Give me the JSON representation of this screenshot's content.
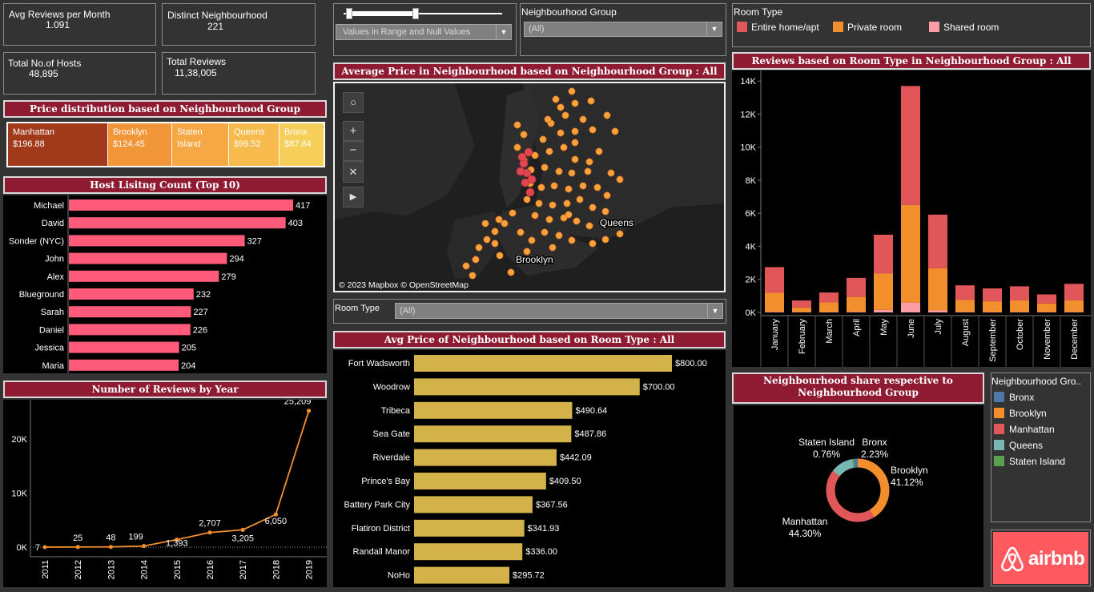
{
  "kpis": {
    "avg_reviews": {
      "label": "Avg Reviews per Month",
      "value": "1.091"
    },
    "distinct_neigh": {
      "label": "Distinct Neighbourhood",
      "value": "221"
    },
    "total_hosts": {
      "label": "Total No.of Hosts",
      "value": "48,895"
    },
    "total_reviews": {
      "label": "Total Reviews",
      "value": "11,38,005"
    }
  },
  "filters": {
    "range_filter": {
      "selected": "Values in Range and Null Values",
      "slider_low": 0.03,
      "slider_high": 0.45
    },
    "neighbourhood_group": {
      "label": "Neighbourhood Group",
      "selected": "(All)"
    },
    "room_type": {
      "label": "Room Type",
      "selected": "(All)"
    }
  },
  "room_type_legend": {
    "title": "Room Type",
    "items": [
      {
        "label": "Entire home/apt",
        "color": "#e15759"
      },
      {
        "label": "Private room",
        "color": "#f28e2b"
      },
      {
        "label": "Shared room",
        "color": "#ff9da7"
      }
    ]
  },
  "price_distribution": {
    "title": "Price distribution based on Neighbourhood Group",
    "cells": [
      {
        "name": "Manhattan",
        "price": "$196.88",
        "color": "#a03a1b"
      },
      {
        "name": "Brooklyn",
        "price": "$124.45",
        "color": "#f2963a"
      },
      {
        "name": "Staten Island",
        "price": "",
        "color": "#f5a843"
      },
      {
        "name": "Queens",
        "price": "$99.52",
        "color": "#f7bb4d"
      },
      {
        "name": "Bronx",
        "price": "$87.64",
        "color": "#f6cf5a"
      }
    ]
  },
  "host_listing": {
    "title": "Host Lisitng Count (Top 10)",
    "chart_data": {
      "type": "bar",
      "categories": [
        "Michael",
        "David",
        "Sonder (NYC)",
        "John",
        "Alex",
        "Blueground",
        "Sarah",
        "Daniel",
        "Jessica",
        "Maria"
      ],
      "values": [
        417,
        403,
        327,
        294,
        279,
        232,
        227,
        226,
        205,
        204
      ],
      "color": "#ff5a7a"
    }
  },
  "reviews_by_year": {
    "title": "Number of Reviews by Year",
    "chart_data": {
      "type": "line",
      "x": [
        "2011",
        "2012",
        "2013",
        "2014",
        "2015",
        "2016",
        "2017",
        "2018",
        "2019"
      ],
      "values": [
        7,
        25,
        48,
        199,
        1393,
        2707,
        3205,
        6050,
        25209
      ],
      "labels": [
        "7",
        "25",
        "48",
        "199",
        "1,393",
        "2,707",
        "3,205",
        "6,050",
        "25,209"
      ],
      "yticks": [
        "0K",
        "10K",
        "20K"
      ],
      "ytick_values": [
        0,
        10000,
        20000
      ],
      "ylim": [
        0,
        26500
      ],
      "color": "#f28e2b"
    }
  },
  "map": {
    "title": "Average Price in Neighbourhood based on Neighbourhood Group : All",
    "labels": {
      "queens": "Queens",
      "brooklyn": "Brooklyn"
    },
    "attribution": "© 2023 Mapbox © OpenStreetMap",
    "controls": {
      "search": "search-icon",
      "zoom_in": "+",
      "zoom_out": "−",
      "pin": "pin-icon",
      "play": "play-icon"
    }
  },
  "avg_price_room": {
    "title": "Avg Price of  Neighbourhood based on Room Type : All",
    "chart_data": {
      "type": "bar",
      "categories": [
        "Fort Wadsworth",
        "Woodrow",
        "Tribeca",
        "Sea Gate",
        "Riverdale",
        "Prince's Bay",
        "Battery Park City",
        "Flatiron District",
        "Randall Manor",
        "NoHo"
      ],
      "values": [
        800.0,
        700.0,
        490.64,
        487.86,
        442.09,
        409.5,
        367.56,
        341.93,
        336.0,
        295.72
      ],
      "labels": [
        "$800.00",
        "$700.00",
        "$490.64",
        "$487.86",
        "$442.09",
        "$409.50",
        "$367.56",
        "$341.93",
        "$336.00",
        "$295.72"
      ],
      "color": "#d4b24a"
    }
  },
  "reviews_room_type": {
    "title": "Reviews based on Room Type in Neighbourhood Group :  All",
    "chart_data": {
      "type": "bar",
      "stacked": true,
      "categories": [
        "January",
        "February",
        "March",
        "April",
        "May",
        "June",
        "July",
        "August",
        "September",
        "October",
        "November",
        "December"
      ],
      "series": [
        {
          "name": "Shared room",
          "color": "#ff9da7",
          "values": [
            40,
            20,
            25,
            40,
            150,
            600,
            120,
            30,
            25,
            30,
            20,
            30
          ]
        },
        {
          "name": "Private room",
          "color": "#f28e2b",
          "values": [
            1150,
            280,
            580,
            900,
            2200,
            5900,
            2550,
            720,
            650,
            700,
            520,
            700
          ]
        },
        {
          "name": "Entire home/apt",
          "color": "#e15759",
          "values": [
            1550,
            420,
            600,
            1150,
            2350,
            7200,
            3250,
            890,
            780,
            850,
            550,
            1000
          ]
        }
      ],
      "yticks": [
        "0K",
        "2K",
        "4K",
        "6K",
        "8K",
        "10K",
        "12K",
        "14K"
      ],
      "ytick_values": [
        0,
        2000,
        4000,
        6000,
        8000,
        10000,
        12000,
        14000
      ],
      "ylim": [
        0,
        14300
      ]
    }
  },
  "neigh_share": {
    "title": "Neighbourhood share respective to Neighbourhood Group",
    "chart_data": {
      "type": "pie",
      "donut": true,
      "slices": [
        {
          "name": "Brooklyn",
          "value": 41.12,
          "label": "41.12%",
          "color": "#f28e2b"
        },
        {
          "name": "Manhattan",
          "value": 44.3,
          "label": "44.30%",
          "color": "#e15759"
        },
        {
          "name": "Queens",
          "value": 11.59,
          "label": "",
          "color": "#76b7b2"
        },
        {
          "name": "Staten Island",
          "value": 0.76,
          "label": "0.76%",
          "color": "#59a14f"
        },
        {
          "name": "Bronx",
          "value": 2.23,
          "label": "2.23%",
          "color": "#4e79a7"
        }
      ]
    }
  },
  "group_legend": {
    "title": "Neighbourhood Gro..",
    "items": [
      {
        "label": "Bronx",
        "color": "#4e79a7"
      },
      {
        "label": "Brooklyn",
        "color": "#f28e2b"
      },
      {
        "label": "Manhattan",
        "color": "#e15759"
      },
      {
        "label": "Queens",
        "color": "#76b7b2"
      },
      {
        "label": "Staten Island",
        "color": "#59a14f"
      }
    ]
  },
  "logo": {
    "text": "airbnb",
    "color": "#ff5a5f"
  }
}
